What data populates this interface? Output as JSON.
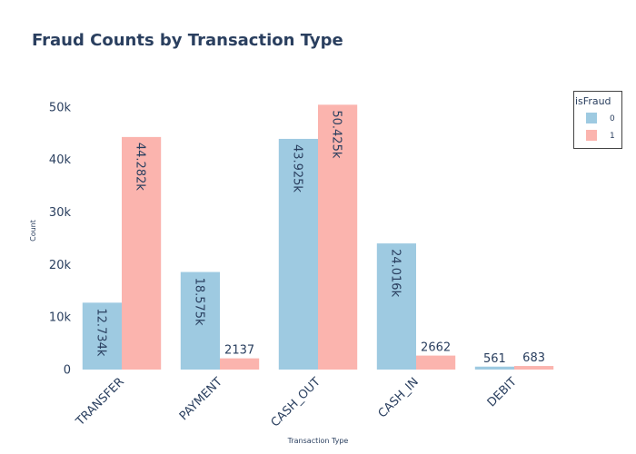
{
  "chart_data": {
    "type": "bar",
    "title": "Fraud Counts by Transaction Type",
    "xlabel": "Transaction Type",
    "ylabel": "Count",
    "categories": [
      "TRANSFER",
      "PAYMENT",
      "CASH_OUT",
      "CASH_IN",
      "DEBIT"
    ],
    "series": [
      {
        "name": "0",
        "color": "#9ecae1",
        "values": [
          12734,
          18575,
          43925,
          24016,
          561
        ],
        "labels": [
          "12.734k",
          "18.575k",
          "43.925k",
          "24.016k",
          "561"
        ]
      },
      {
        "name": "1",
        "color": "#fbb4ae",
        "values": [
          44282,
          2137,
          50425,
          2662,
          683
        ],
        "labels": [
          "44.282k",
          "2137",
          "50.425k",
          "2662",
          "683"
        ]
      }
    ],
    "ylim": [
      0,
      53079
    ],
    "yticks": [
      0,
      10000,
      20000,
      30000,
      40000,
      50000
    ],
    "ytick_labels": [
      "0",
      "10k",
      "20k",
      "30k",
      "40k",
      "50k"
    ],
    "grid": false,
    "legend": {
      "title": "isFraud",
      "position": "top-right"
    }
  }
}
